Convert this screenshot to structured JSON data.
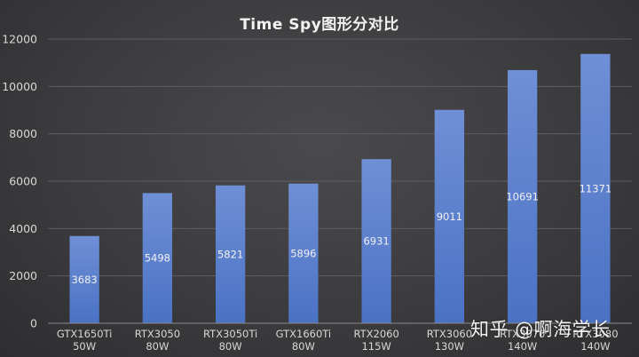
{
  "chart_data": {
    "type": "bar",
    "title": "Time Spy图形分对比",
    "categories": [
      [
        "GTX1650Ti",
        "50W"
      ],
      [
        "RTX3050",
        "80W"
      ],
      [
        "RTX3050Ti",
        "80W"
      ],
      [
        "GTX1660Ti",
        "80W"
      ],
      [
        "RTX2060",
        "115W"
      ],
      [
        "RTX3060",
        "130W"
      ],
      [
        "RTX3070",
        "140W"
      ],
      [
        "RTX3080",
        "140W"
      ]
    ],
    "values": [
      3683,
      5498,
      5821,
      5896,
      6931,
      9011,
      10691,
      11371
    ],
    "ylim": [
      0,
      12000
    ],
    "yticks": [
      0,
      2000,
      4000,
      6000,
      8000,
      10000,
      12000
    ],
    "grid": true,
    "legend": "none",
    "bar_color": "#4a72c4",
    "bar_color_top": "#6f8fd6"
  },
  "watermark": "知乎 @啊海学长"
}
